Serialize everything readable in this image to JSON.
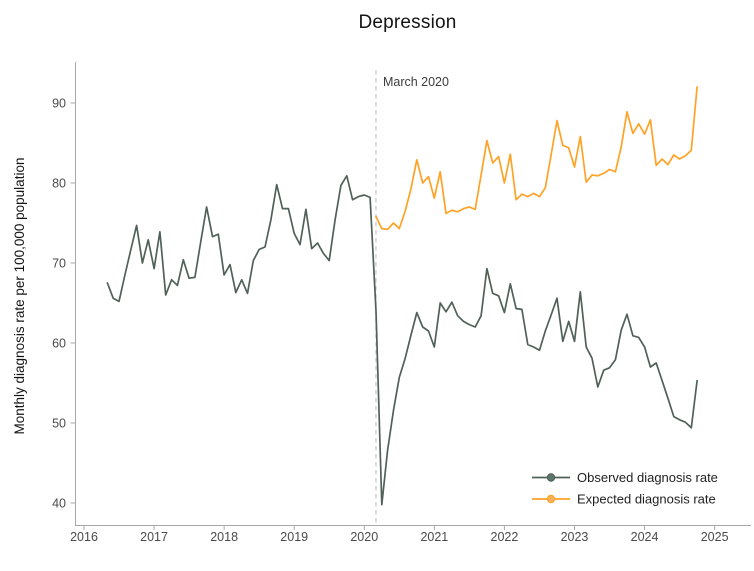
{
  "title": "Depression",
  "colors": {
    "observed_line": "#506158",
    "observed_marker": "#5e746e",
    "expected_line": "#ffa226",
    "expected_marker": "#fdb25e",
    "axis": "#a8a8a8",
    "annotation_line": "#c9c9c9",
    "tick_text": "#4a4a4a"
  },
  "chart_data": {
    "type": "line",
    "title": "Depression",
    "xlabel": "",
    "ylabel": "Monthly diagnosis rate per 100,000 population",
    "ylim": [
      40,
      90
    ],
    "yticks": [
      40,
      50,
      60,
      70,
      80,
      90
    ],
    "xticks": [
      2016,
      2017,
      2018,
      2019,
      2020,
      2021,
      2022,
      2023,
      2024,
      2025
    ],
    "grid": false,
    "legend_position": "bottom-right",
    "annotation": {
      "label": "March 2020",
      "x": 2020.1667
    },
    "series": [
      {
        "name": "Observed diagnosis rate",
        "color": "#506158",
        "marker_fill": "#5e746e",
        "start": "2016-05",
        "values": [
          67.5,
          65.6,
          65.2,
          68.5,
          71.6,
          74.7,
          70.0,
          72.9,
          69.3,
          73.9,
          66.0,
          67.9,
          67.2,
          70.4,
          68.1,
          68.2,
          72.7,
          77.0,
          73.3,
          73.6,
          68.5,
          69.8,
          66.3,
          67.9,
          66.2,
          70.3,
          71.7,
          72.0,
          75.4,
          79.8,
          76.8,
          76.8,
          73.7,
          72.3,
          76.7,
          71.8,
          72.5,
          71.2,
          70.3,
          75.4,
          79.7,
          80.9,
          77.9,
          78.3,
          78.5,
          78.2,
          64.0,
          39.8,
          46.6,
          51.6,
          55.7,
          58.1,
          61.0,
          63.8,
          62.0,
          61.5,
          59.5,
          65.0,
          63.9,
          65.1,
          63.4,
          62.7,
          62.3,
          62.0,
          63.4,
          69.3,
          66.2,
          65.9,
          63.8,
          67.4,
          64.3,
          64.2,
          59.8,
          59.5,
          59.1,
          61.5,
          63.5,
          65.6,
          60.2,
          62.7,
          60.2,
          66.4,
          59.5,
          58.1,
          54.5,
          56.6,
          56.9,
          57.9,
          61.6,
          63.6,
          60.9,
          60.7,
          59.5,
          57.0,
          57.5,
          55.3,
          53.1,
          50.8,
          50.4,
          50.1,
          49.4,
          55.3
        ]
      },
      {
        "name": "Expected diagnosis rate",
        "color": "#ffa226",
        "marker_fill": "#fdb25e",
        "start": "2020-03",
        "values": [
          75.8,
          74.3,
          74.2,
          75.0,
          74.3,
          76.5,
          79.3,
          82.9,
          80.0,
          80.8,
          78.1,
          81.4,
          76.2,
          76.6,
          76.4,
          76.8,
          77.0,
          76.7,
          81.0,
          85.3,
          82.5,
          83.3,
          80.0,
          83.6,
          77.9,
          78.6,
          78.3,
          78.7,
          78.3,
          79.4,
          83.5,
          87.8,
          84.7,
          84.4,
          82.0,
          85.8,
          80.1,
          81.0,
          80.9,
          81.2,
          81.7,
          81.4,
          84.5,
          88.9,
          86.2,
          87.4,
          86.1,
          87.9,
          82.2,
          83.0,
          82.3,
          83.5,
          83.0,
          83.4,
          84.1,
          92.0
        ]
      }
    ]
  }
}
